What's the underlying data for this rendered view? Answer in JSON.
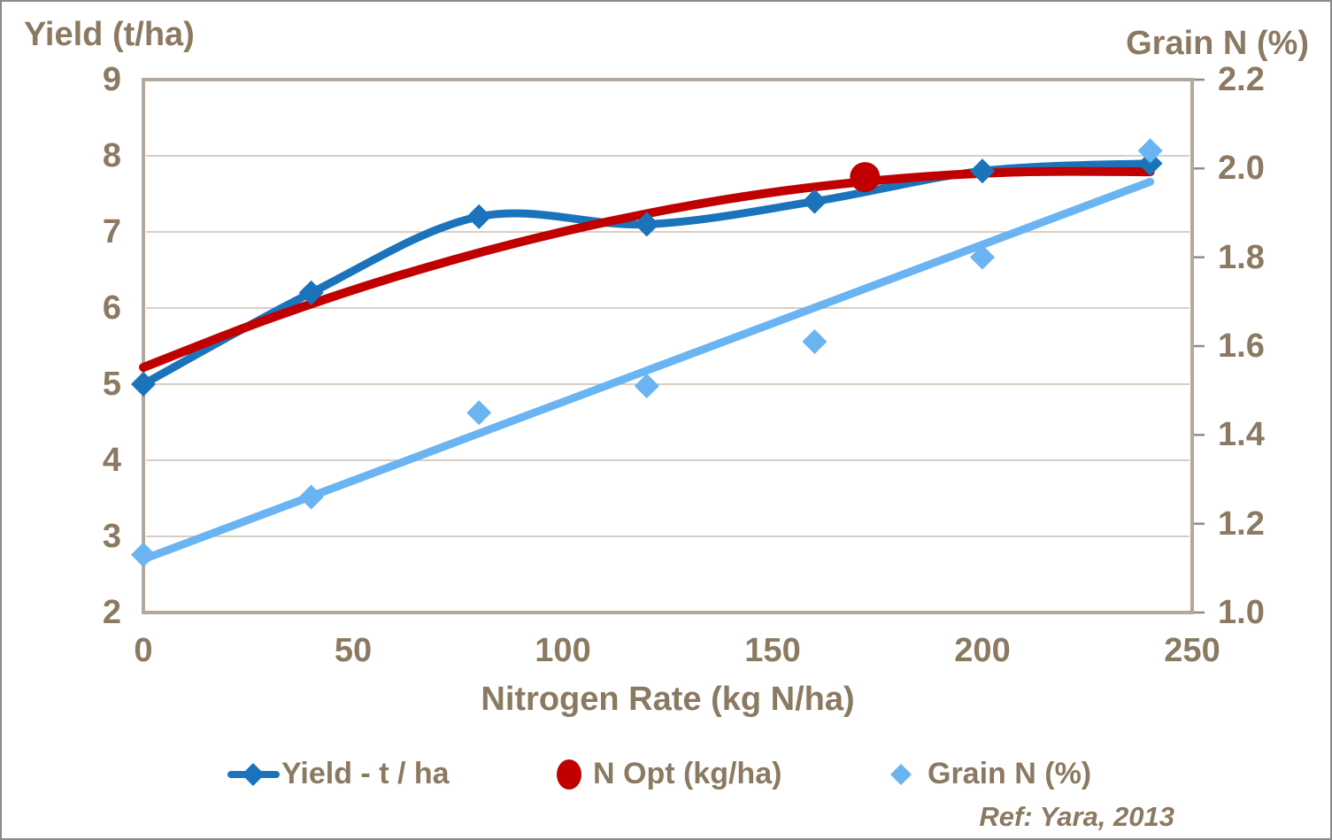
{
  "colors": {
    "text": "#8B7961",
    "gridline": "#C9BFB1",
    "plot_border": "#B3A89B",
    "axis_tick": "#958B7D",
    "outer_border": "#8A8A8A",
    "yield_blue": "#1B74BB",
    "nopt_red": "#C00000",
    "grain_lightblue": "#6AB4F2",
    "background": "#FFFFFF"
  },
  "chart_data": {
    "type": "line",
    "title": "",
    "grid": "horizontal",
    "legend_position": "bottom",
    "footnote": "Ref: Yara, 2013",
    "x_axis": {
      "title": "Nitrogen Rate (kg N/ha)",
      "min": 0,
      "max": 250,
      "tick_labels": [
        "0",
        "50",
        "100",
        "150",
        "200",
        "250"
      ]
    },
    "left_axis": {
      "title": "Yield (t/ha)",
      "min": 2,
      "max": 9,
      "tick_labels": [
        "9",
        "8",
        "7",
        "6",
        "5",
        "4",
        "3",
        "2"
      ]
    },
    "right_axis": {
      "title": "Grain N (%)",
      "min": 1.0,
      "max": 2.2,
      "tick_labels": [
        "2.2",
        "2.0",
        "1.8",
        "1.6",
        "1.4",
        "1.2",
        "1.0"
      ]
    },
    "series": [
      {
        "name": "Yield - t / ha",
        "axis": "left",
        "style": "smooth-line-with-diamond-markers",
        "color": "#1B74BB",
        "x": [
          0,
          40,
          80,
          120,
          160,
          200,
          240
        ],
        "y": [
          5.0,
          6.2,
          7.2,
          7.1,
          7.4,
          7.8,
          7.9
        ]
      },
      {
        "name": "N Opt (kg/ha)",
        "axis": "left",
        "style": "smooth-curve-with-single-point",
        "color": "#C00000",
        "curve_x": [
          0,
          30,
          60,
          90,
          120,
          150,
          180,
          210,
          240
        ],
        "curve_y": [
          5.22,
          5.86,
          6.41,
          6.87,
          7.24,
          7.52,
          7.7,
          7.79,
          7.79
        ],
        "opt_point": {
          "x": 172,
          "y": 7.72
        }
      },
      {
        "name": "Grain N (%)",
        "axis": "right",
        "style": "diamond-scatter-with-linear-trendline",
        "color": "#6AB4F2",
        "x": [
          0,
          40,
          80,
          120,
          160,
          200,
          240
        ],
        "y": [
          1.13,
          1.26,
          1.45,
          1.51,
          1.61,
          1.8,
          2.04
        ],
        "trendline": {
          "x": [
            0,
            240
          ],
          "y": [
            1.12,
            1.97
          ]
        }
      }
    ]
  }
}
